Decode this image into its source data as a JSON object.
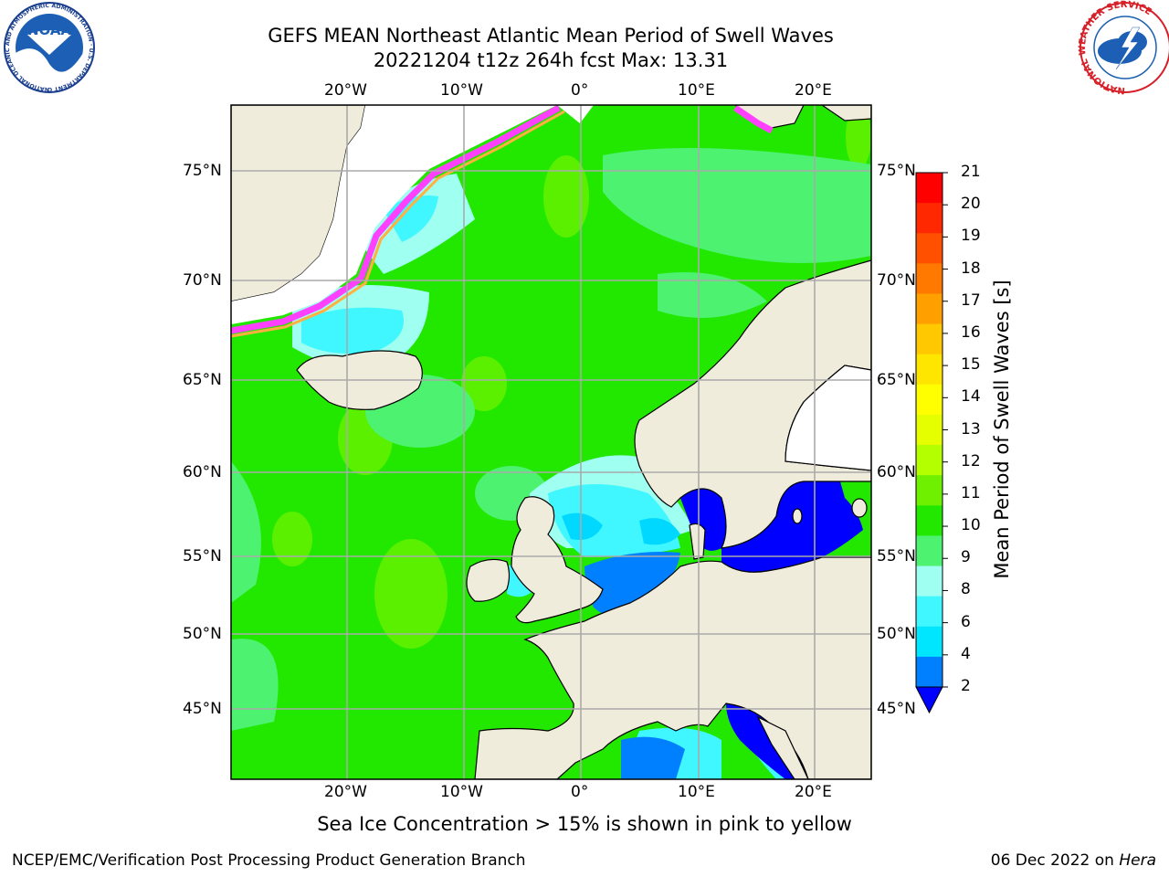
{
  "header": {
    "title_line1": "GEFS MEAN Northeast Atlantic Mean Period of Swell Waves",
    "title_line2": "20221204 t12z 264h fcst   Max: 13.31"
  },
  "logos": {
    "left": {
      "name": "noaa-logo",
      "text": "NOAA",
      "ring_text": "NATIONAL OCEANIC AND ATMOSPHERIC ADMINISTRATION · U.S. DEPARTMENT OF COMMERCE"
    },
    "right": {
      "name": "nws-logo",
      "ring_text": "NATIONAL WEATHER SERVICE"
    }
  },
  "map": {
    "region": "Northeast Atlantic",
    "lon_ticks": [
      "20°W",
      "10°W",
      "0°",
      "10°E",
      "20°E"
    ],
    "lat_ticks": [
      "75°N",
      "70°N",
      "65°N",
      "60°N",
      "55°N",
      "50°N",
      "45°N"
    ],
    "colors": {
      "land": "#efecdc",
      "ocean_swell_10_11": "#22e800",
      "ocean_swell_11_12": "#5af000",
      "ocean_swell_9_10": "#4cf270",
      "ocean_swell_8_9": "#9ffff0",
      "ocean_swell_6_8": "#40f6ff",
      "ocean_swell_4_6": "#00d8ff",
      "ocean_swell_2_4": "#0080ff",
      "ocean_swell_lt2": "#0000ff",
      "ice": "#ff40ff",
      "grid": "#aaaaaa"
    }
  },
  "colorbar": {
    "title": "Mean Period of Swell Waves [s]",
    "ticks": [
      "21",
      "20",
      "19",
      "18",
      "17",
      "16",
      "15",
      "14",
      "13",
      "12",
      "11",
      "10",
      "9",
      "8",
      "6",
      "4",
      "2"
    ],
    "colors_top_to_bottom": [
      "#ff0000",
      "#ff2800",
      "#ff5000",
      "#ff7800",
      "#ffa000",
      "#ffc800",
      "#ffe600",
      "#ffff00",
      "#e6ff00",
      "#b4ff00",
      "#6ef000",
      "#22e800",
      "#4cf270",
      "#9ffff0",
      "#40f6ff",
      "#00e6ff",
      "#0080ff"
    ],
    "extend_color": "#0000ff"
  },
  "notes": {
    "ice": "Sea Ice Concentration > 15% is shown in pink to yellow"
  },
  "footer": {
    "left": "NCEP/EMC/Verification Post Processing Product Generation Branch",
    "date": "06 Dec 2022 on",
    "host": "Hera"
  }
}
